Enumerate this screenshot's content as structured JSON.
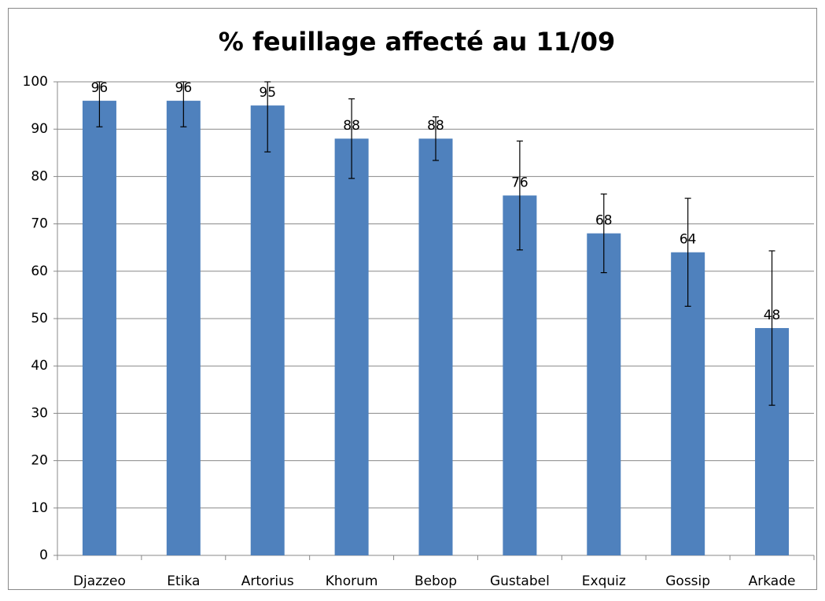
{
  "chart_data": {
    "type": "bar",
    "title": "% feuillage affecté au 11/09",
    "categories": [
      "Djazzeo",
      "Etika",
      "Artorius",
      "Khorum",
      "Bebop",
      "Gustabel",
      "Exquiz",
      "Gossip",
      "Arkade"
    ],
    "values": [
      96,
      96,
      95,
      88,
      88,
      76,
      68,
      64,
      48
    ],
    "errors": [
      5.5,
      5.5,
      9.8,
      8.4,
      4.6,
      11.5,
      8.3,
      11.4,
      16.3
    ],
    "color": "#4f81bd",
    "ylim": [
      0,
      100
    ],
    "yticks": [
      0,
      10,
      20,
      30,
      40,
      50,
      60,
      70,
      80,
      90,
      100
    ],
    "grid": true
  }
}
